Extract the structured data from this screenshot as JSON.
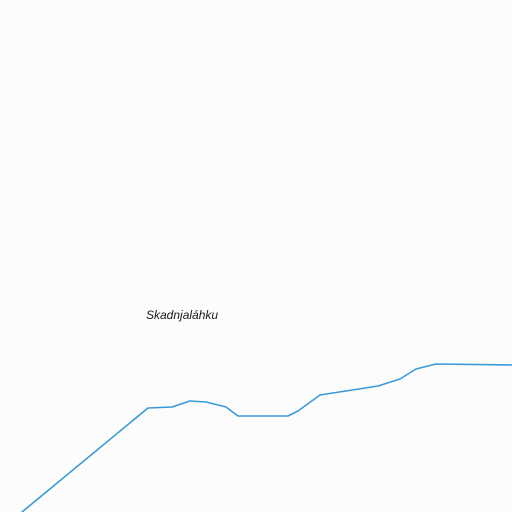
{
  "map": {
    "background_color": "#fcfcfc",
    "labels": {
      "place": "Skadnjaláhku"
    },
    "features": {
      "waterway_color": "#3a9ad9",
      "waterway_icon": "river-line"
    }
  }
}
